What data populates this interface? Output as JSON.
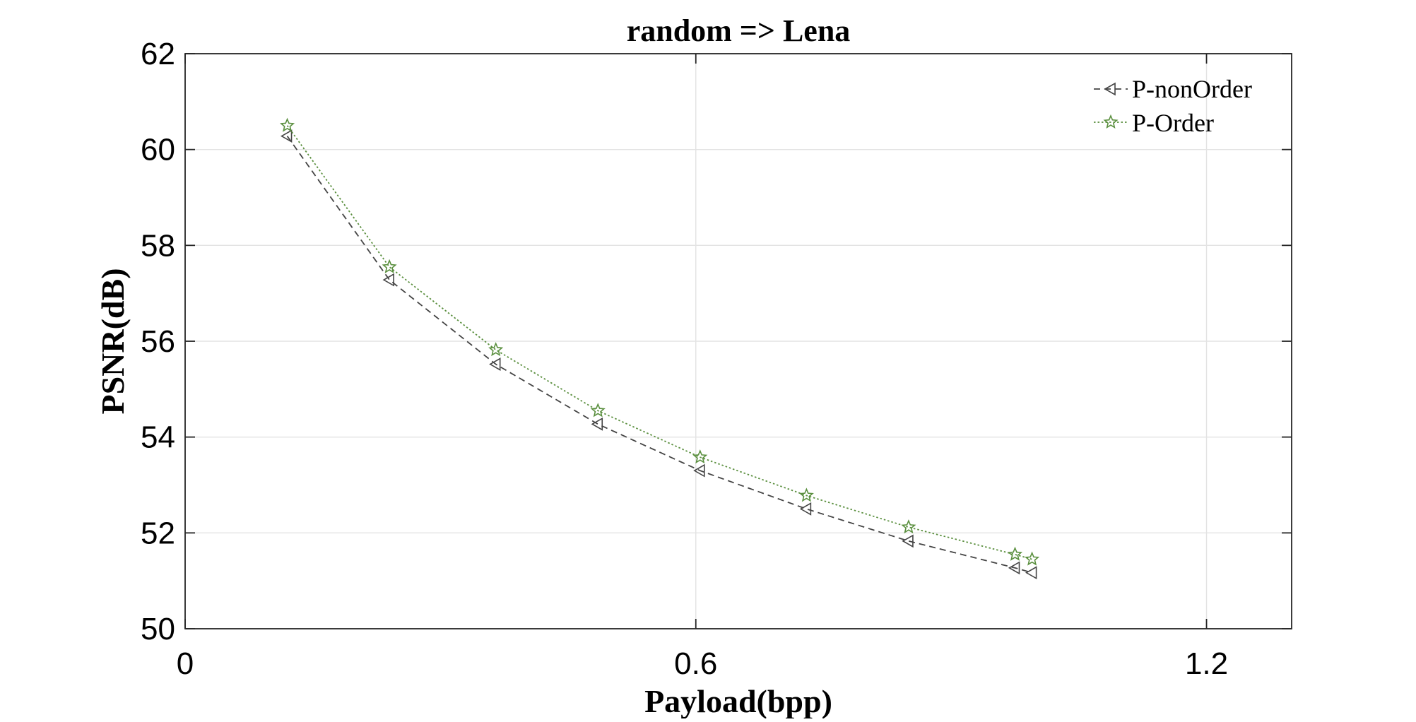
{
  "chart_data": {
    "type": "line",
    "title": "random => Lena",
    "xlabel": "Payload(bpp)",
    "ylabel": "PSNR(dB)",
    "xlim": [
      0,
      1.3
    ],
    "ylim": [
      50,
      62
    ],
    "xticks": [
      0,
      0.6,
      1.2
    ],
    "xtick_labels": [
      "0",
      "0.6",
      "1.2"
    ],
    "yticks": [
      50,
      52,
      54,
      56,
      58,
      60,
      62
    ],
    "ytick_labels": [
      "50",
      "52",
      "54",
      "56",
      "58",
      "60",
      "62"
    ],
    "grid": true,
    "legend_position": "top-right",
    "series": [
      {
        "name": "P-nonOrder",
        "color": "#444444",
        "line_style": "dashed",
        "marker": "triangle-left",
        "x": [
          0.12,
          0.24,
          0.365,
          0.485,
          0.605,
          0.73,
          0.85,
          0.975,
          0.995
        ],
        "y": [
          60.28,
          57.28,
          55.52,
          54.27,
          53.3,
          52.5,
          51.83,
          51.27,
          51.17
        ]
      },
      {
        "name": "P-Order",
        "color": "#5a8f3e",
        "line_style": "dotted",
        "marker": "star",
        "x": [
          0.12,
          0.24,
          0.365,
          0.485,
          0.605,
          0.73,
          0.85,
          0.975,
          0.995
        ],
        "y": [
          60.5,
          57.55,
          55.82,
          54.55,
          53.58,
          52.78,
          52.12,
          51.55,
          51.45
        ]
      }
    ]
  }
}
